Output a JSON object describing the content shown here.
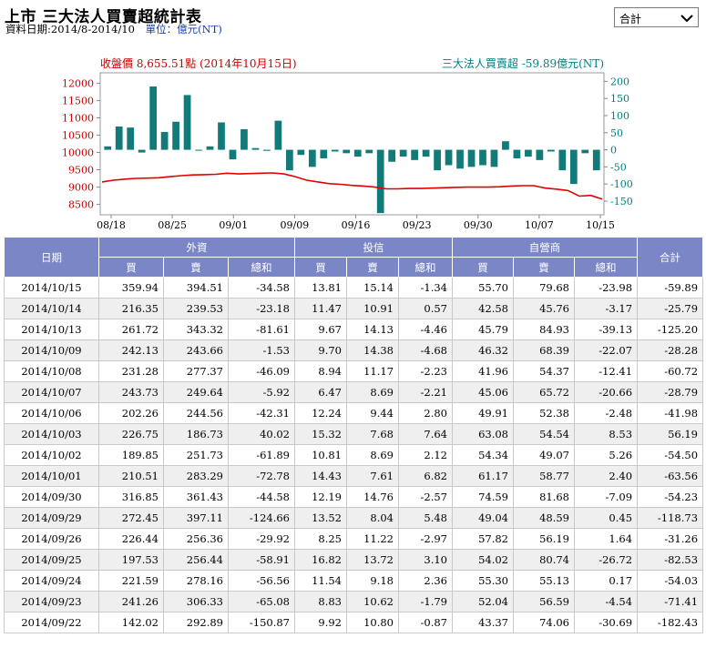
{
  "header": {
    "title": "上市 三大法人買賣超統計表",
    "date_range": "資料日期:2014/8-2014/10",
    "unit": "單位：億元(NT)"
  },
  "selector": {
    "value": "合計"
  },
  "chart_data": {
    "type": "bar+line",
    "left_title": "收盤價 8,655.51點 (2014年10月15日)",
    "right_title": "三大法人買賣超 -59.89億元(NT)",
    "x_tick_labels": [
      "08/18",
      "08/25",
      "09/01",
      "09/09",
      "09/16",
      "09/23",
      "09/30",
      "10/07",
      "10/15"
    ],
    "left_axis": {
      "ticks": [
        8500,
        9000,
        9500,
        10000,
        10500,
        11000,
        11500,
        12000
      ],
      "range": [
        8200,
        12300
      ],
      "color": "#cc0000"
    },
    "right_axis": {
      "ticks": [
        -150,
        -100,
        -50,
        0,
        50,
        100,
        150,
        200
      ],
      "range": [
        -190,
        225
      ],
      "color": "#008080"
    },
    "bars": {
      "name": "三大法人買賣超",
      "color": "#137a7a",
      "values": [
        10,
        68,
        65,
        -8,
        185,
        52,
        82,
        160,
        -2,
        10,
        80,
        -28,
        60,
        5,
        -3,
        85,
        -60,
        -15,
        -50,
        -25,
        -5,
        -10,
        -20,
        -10,
        -185,
        -35,
        -20,
        -30,
        -20,
        -60,
        -45,
        -55,
        -50,
        -45,
        -50,
        25,
        -25,
        -20,
        -30,
        -5,
        -60,
        -100,
        -10,
        -60
      ],
      "last_values_labelled_by_table": [
        -118.73,
        -54.23,
        -63.56,
        -54.5,
        56.19,
        -41.98,
        -28.79,
        -60.72,
        -28.28,
        -125.2,
        -25.79,
        -59.89
      ]
    },
    "line": {
      "name": "收盤價",
      "color": "#e00000",
      "values": [
        9150,
        9200,
        9230,
        9250,
        9260,
        9270,
        9300,
        9330,
        9350,
        9360,
        9370,
        9400,
        9380,
        9390,
        9400,
        9410,
        9380,
        9300,
        9200,
        9150,
        9100,
        9080,
        9050,
        9030,
        9000,
        8950,
        8950,
        8960,
        8960,
        8970,
        8980,
        8990,
        9000,
        9000,
        9000,
        9010,
        9030,
        9040,
        9040,
        8970,
        8940,
        8900,
        8740,
        8760,
        8655
      ]
    }
  },
  "table": {
    "group_headers": [
      "日期",
      "外資",
      "投信",
      "自營商",
      "合計"
    ],
    "sub_headers": [
      "買",
      "賣",
      "總和",
      "買",
      "賣",
      "總和",
      "買",
      "賣",
      "總和"
    ],
    "rows": [
      [
        "2014/10/15",
        "359.94",
        "394.51",
        "-34.58",
        "13.81",
        "15.14",
        "-1.34",
        "55.70",
        "79.68",
        "-23.98",
        "-59.89"
      ],
      [
        "2014/10/14",
        "216.35",
        "239.53",
        "-23.18",
        "11.47",
        "10.91",
        "0.57",
        "42.58",
        "45.76",
        "-3.17",
        "-25.79"
      ],
      [
        "2014/10/13",
        "261.72",
        "343.32",
        "-81.61",
        "9.67",
        "14.13",
        "-4.46",
        "45.79",
        "84.93",
        "-39.13",
        "-125.20"
      ],
      [
        "2014/10/09",
        "242.13",
        "243.66",
        "-1.53",
        "9.70",
        "14.38",
        "-4.68",
        "46.32",
        "68.39",
        "-22.07",
        "-28.28"
      ],
      [
        "2014/10/08",
        "231.28",
        "277.37",
        "-46.09",
        "8.94",
        "11.17",
        "-2.23",
        "41.96",
        "54.37",
        "-12.41",
        "-60.72"
      ],
      [
        "2014/10/07",
        "243.73",
        "249.64",
        "-5.92",
        "6.47",
        "8.69",
        "-2.21",
        "45.06",
        "65.72",
        "-20.66",
        "-28.79"
      ],
      [
        "2014/10/06",
        "202.26",
        "244.56",
        "-42.31",
        "12.24",
        "9.44",
        "2.80",
        "49.91",
        "52.38",
        "-2.48",
        "-41.98"
      ],
      [
        "2014/10/03",
        "226.75",
        "186.73",
        "40.02",
        "15.32",
        "7.68",
        "7.64",
        "63.08",
        "54.54",
        "8.53",
        "56.19"
      ],
      [
        "2014/10/02",
        "189.85",
        "251.73",
        "-61.89",
        "10.81",
        "8.69",
        "2.12",
        "54.34",
        "49.07",
        "5.26",
        "-54.50"
      ],
      [
        "2014/10/01",
        "210.51",
        "283.29",
        "-72.78",
        "14.43",
        "7.61",
        "6.82",
        "61.17",
        "58.77",
        "2.40",
        "-63.56"
      ],
      [
        "2014/09/30",
        "316.85",
        "361.43",
        "-44.58",
        "12.19",
        "14.76",
        "-2.57",
        "74.59",
        "81.68",
        "-7.09",
        "-54.23"
      ],
      [
        "2014/09/29",
        "272.45",
        "397.11",
        "-124.66",
        "13.52",
        "8.04",
        "5.48",
        "49.04",
        "48.59",
        "0.45",
        "-118.73"
      ],
      [
        "2014/09/26",
        "226.44",
        "256.36",
        "-29.92",
        "8.25",
        "11.22",
        "-2.97",
        "57.82",
        "56.19",
        "1.64",
        "-31.26"
      ],
      [
        "2014/09/25",
        "197.53",
        "256.44",
        "-58.91",
        "16.82",
        "13.72",
        "3.10",
        "54.02",
        "80.74",
        "-26.72",
        "-82.53"
      ],
      [
        "2014/09/24",
        "221.59",
        "278.16",
        "-56.56",
        "11.54",
        "9.18",
        "2.36",
        "55.30",
        "55.13",
        "0.17",
        "-54.03"
      ],
      [
        "2014/09/23",
        "241.26",
        "306.33",
        "-65.08",
        "8.83",
        "10.62",
        "-1.79",
        "52.04",
        "56.59",
        "-4.54",
        "-71.41"
      ],
      [
        "2014/09/22",
        "142.02",
        "292.89",
        "-150.87",
        "9.92",
        "10.80",
        "-0.87",
        "43.37",
        "74.06",
        "-30.69",
        "-182.43"
      ]
    ]
  }
}
